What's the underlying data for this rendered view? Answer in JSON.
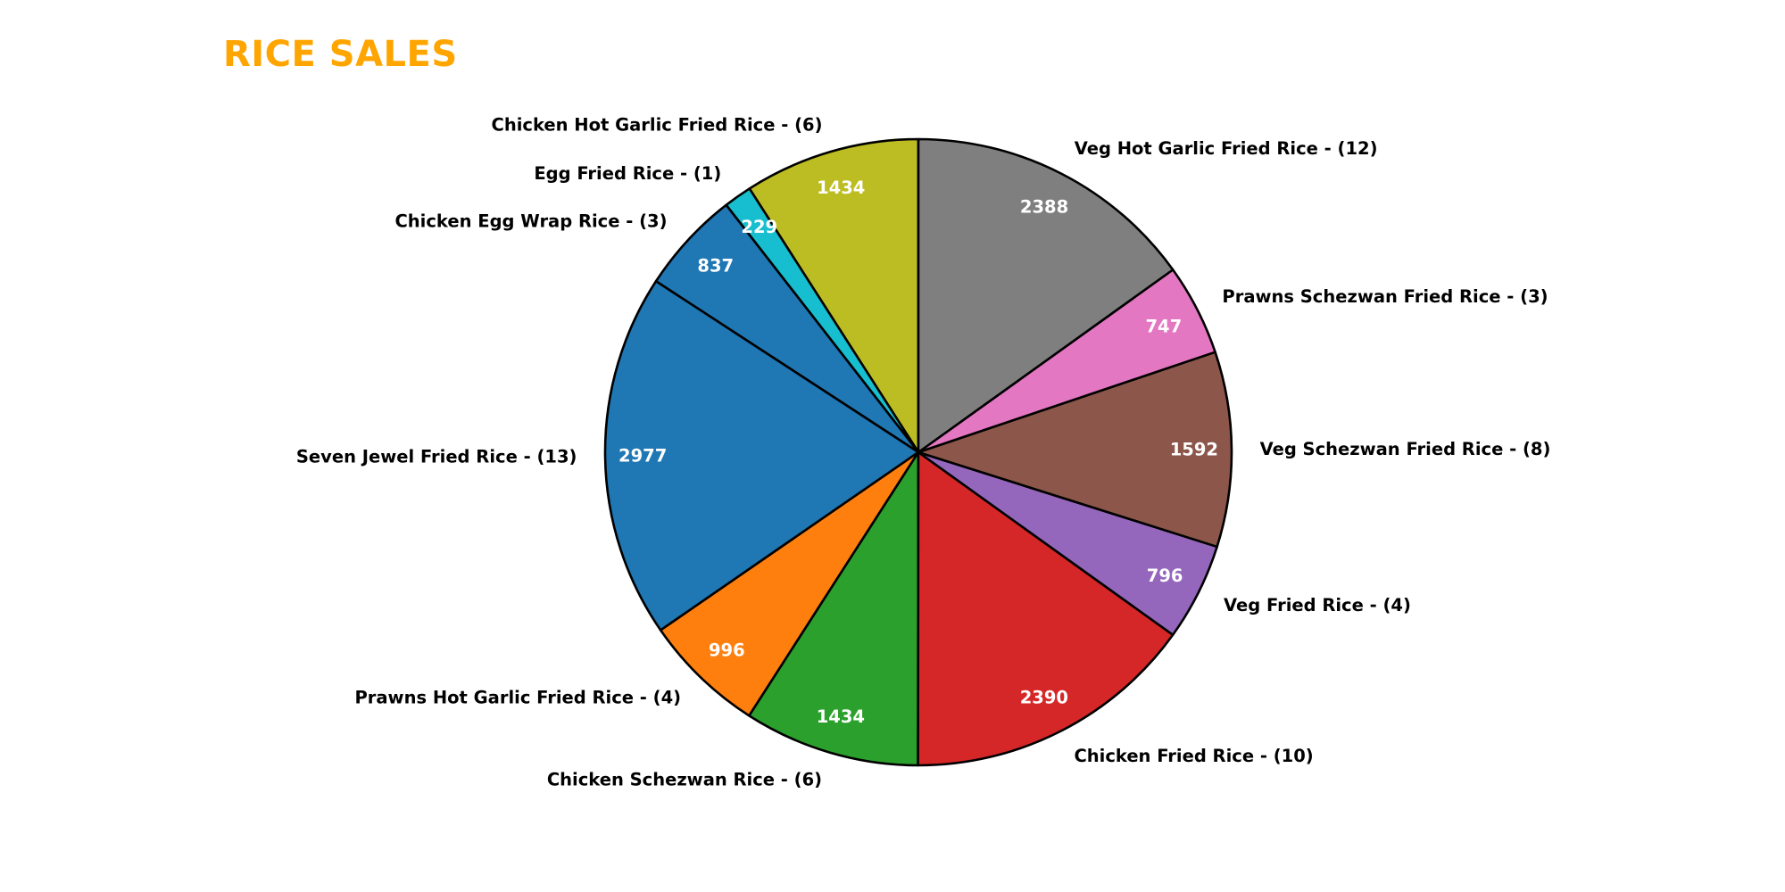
{
  "chart_data": {
    "type": "pie",
    "title": "RICE SALES",
    "start_angle_deg": 90,
    "direction": "counterclockwise",
    "edge_color": "#000000",
    "slices": [
      {
        "label": "Chicken Hot Garlic Fried Rice - (6)",
        "value": 1434,
        "color": "#bcbd22"
      },
      {
        "label": "Egg Fried Rice - (1)",
        "value": 229,
        "color": "#17becf"
      },
      {
        "label": "Chicken Egg Wrap Rice - (3)",
        "value": 837,
        "color": "#1f77b4"
      },
      {
        "label": "Seven Jewel Fried Rice - (13)",
        "value": 2977,
        "color": "#1f77b4"
      },
      {
        "label": "Prawns Hot Garlic Fried Rice - (4)",
        "value": 996,
        "color": "#ff7f0e"
      },
      {
        "label": "Chicken Schezwan Rice - (6)",
        "value": 1434,
        "color": "#2ca02c"
      },
      {
        "label": "Chicken Fried Rice - (10)",
        "value": 2390,
        "color": "#d62728"
      },
      {
        "label": "Veg Fried Rice - (4)",
        "value": 796,
        "color": "#9467bd"
      },
      {
        "label": "Veg Schezwan Fried Rice - (8)",
        "value": 1592,
        "color": "#8c564b"
      },
      {
        "label": "Prawns Schezwan Fried Rice - (3)",
        "value": 747,
        "color": "#e377c2"
      },
      {
        "label": "Veg Hot Garlic Fried Rice - (12)",
        "value": 2388,
        "color": "#7f7f7f"
      }
    ]
  },
  "colors": {
    "title": "#ffa500",
    "value_text": "#ffffff",
    "label_text": "#000000"
  }
}
